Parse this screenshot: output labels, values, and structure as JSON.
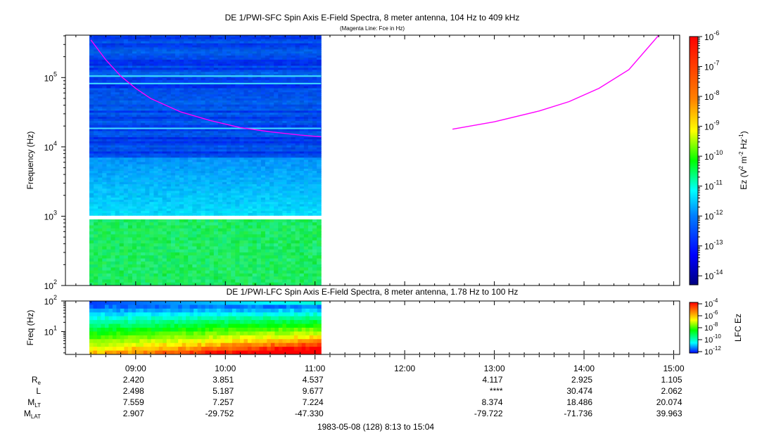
{
  "chart_data": [
    {
      "type": "heatmap",
      "title": "DE 1/PWI-SFC  Spin Axis E-Field Spectra, 8 meter antenna, 104 Hz to 409 kHz",
      "subtitle": "(Magenta Line: Fce in Hz)",
      "ylabel": "Frequency (Hz)",
      "y_scale": "log",
      "ylim": [
        100,
        409000
      ],
      "y_ticks": [
        "10^2",
        "10^3",
        "10^4",
        "10^5"
      ],
      "data_coverage": {
        "start": "08:13",
        "end": "11:04"
      },
      "colorbar": {
        "label": "Ez (V^2 m^-2 Hz^-1)",
        "scale": "log",
        "range": [
          1e-14,
          1e-06
        ],
        "ticks": [
          "10^-14",
          "10^-13",
          "10^-12",
          "10^-11",
          "10^-10",
          "10^-9",
          "10^-8",
          "10^-7",
          "10^-6"
        ]
      },
      "series": [
        {
          "name": "Fce in Hz",
          "color": "#ff00ff",
          "x": [
            "08:30",
            "08:40",
            "08:50",
            "09:00",
            "09:10",
            "09:30",
            "09:50",
            "10:10",
            "10:30",
            "10:50",
            "11:04",
            "12:32",
            "13:00",
            "13:30",
            "13:50",
            "14:10",
            "14:30",
            "14:50"
          ],
          "y": [
            350000,
            180000,
            105000,
            70000,
            50000,
            32000,
            24000,
            19000,
            16500,
            14800,
            14000,
            18000,
            23000,
            33000,
            45000,
            70000,
            130000,
            409000
          ]
        }
      ]
    },
    {
      "type": "heatmap",
      "title": "DE 1/PWI-LFC  Spin Axis E-Field Spectra, 8 meter antenna, 1.78 Hz to 100 Hz",
      "ylabel": "Freq (Hz)",
      "y_scale": "log",
      "ylim": [
        1.78,
        100
      ],
      "y_ticks": [
        "10^1",
        "10^2"
      ],
      "data_coverage": {
        "start": "08:13",
        "end": "11:04"
      },
      "colorbar": {
        "label": "LFC Ez",
        "scale": "log",
        "range": [
          1e-12,
          0.0001
        ],
        "ticks": [
          "10^-12",
          "10^-10",
          "10^-8",
          "10^-6",
          "10^-4"
        ]
      }
    }
  ],
  "time_axis": {
    "range": [
      "08:13",
      "15:04"
    ],
    "tick_labels": [
      "09:00",
      "10:00",
      "11:00",
      "12:00",
      "13:00",
      "14:00",
      "15:00"
    ],
    "caption": "1983-05-08 (128) 8:13 to 15:04"
  },
  "ephemeris": {
    "rows": [
      {
        "label": "R",
        "sub": "e",
        "values": [
          "2.420",
          "3.851",
          "4.537",
          "",
          "4.117",
          "2.925",
          "1.105"
        ]
      },
      {
        "label": "L",
        "sub": "",
        "values": [
          "2.498",
          "5.187",
          "9.677",
          "",
          "****",
          "30.474",
          "2.062"
        ]
      },
      {
        "label": "M",
        "sub": "LT",
        "values": [
          "7.559",
          "7.257",
          "7.224",
          "",
          "8.374",
          "18.486",
          "20.074"
        ]
      },
      {
        "label": "M",
        "sub": "LAT",
        "values": [
          "2.907",
          "-29.752",
          "-47.330",
          "",
          "-79.722",
          "-71.736",
          "39.963"
        ]
      }
    ]
  }
}
